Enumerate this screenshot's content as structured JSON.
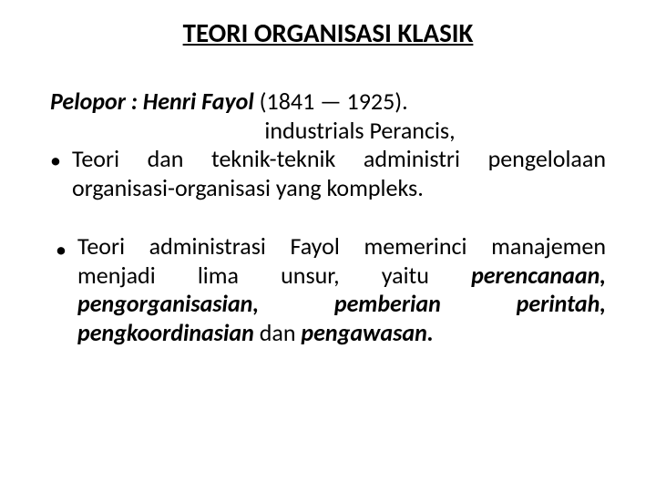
{
  "title": "TEORI ORGANISASI KLASIK",
  "p1": {
    "lead_bi": "Pelopor : Henri Fayol",
    "lead_rest": " (1841 — 1925).",
    "line2": "industrials Perancis,"
  },
  "b1": {
    "text": "Teori dan teknik-teknik administri pengelolaan organisasi-organisasi yang kompleks."
  },
  "b2": {
    "pre": " Teori administrasi  Fayol memerinci manajemen menjadi lima unsur, yaitu ",
    "em": "perencanaan, pengorganisasian, pemberian perintah, pengkoordinasian ",
    "mid": "dan ",
    "em2": "pengawasan."
  }
}
